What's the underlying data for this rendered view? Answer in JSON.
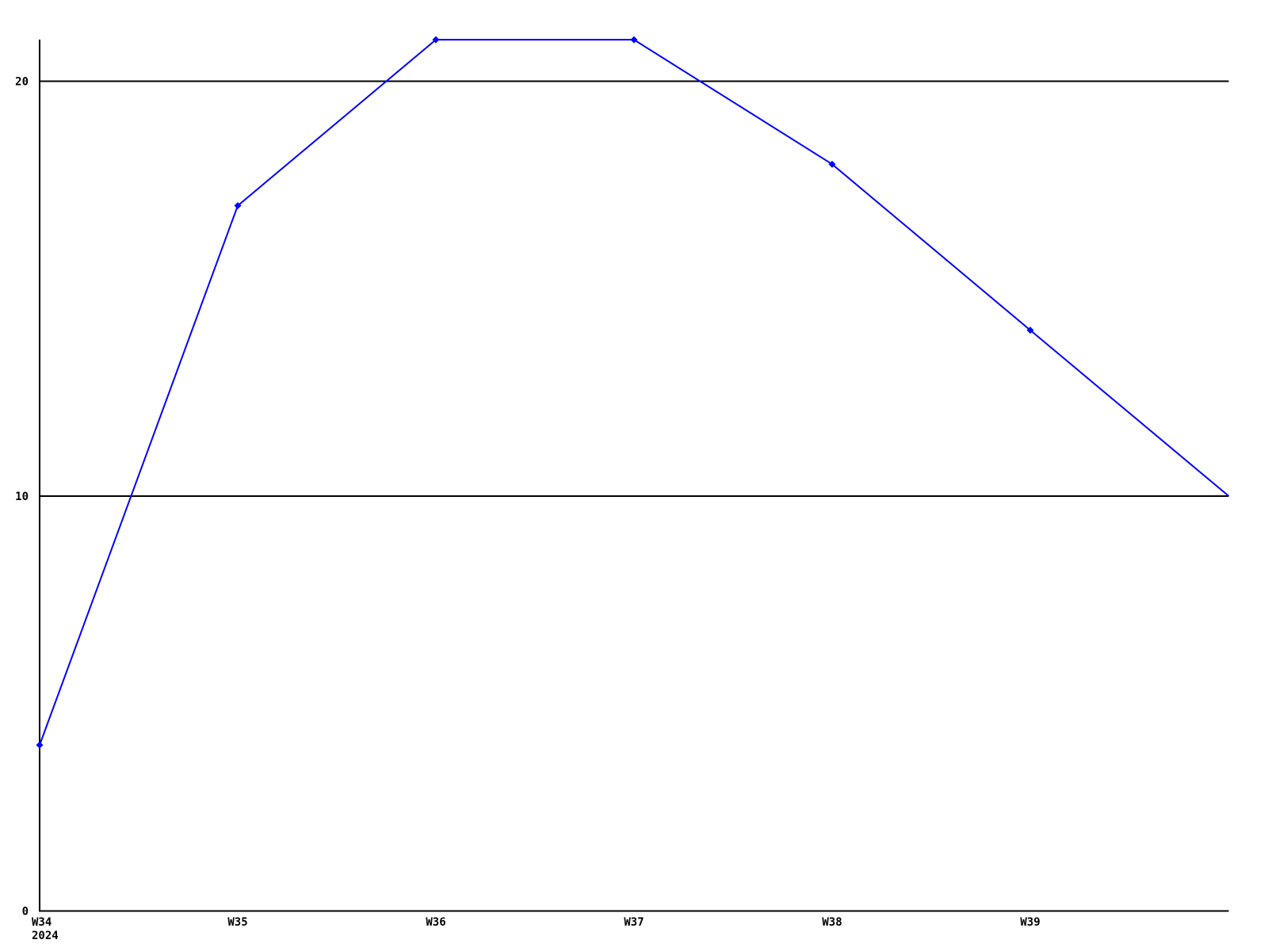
{
  "chart_data": {
    "type": "line",
    "title": "",
    "xlabel": "",
    "ylabel": "",
    "background_color": "#ffffff",
    "axis_color": "#000000",
    "categories": [
      "W34",
      "W35",
      "W36",
      "W37",
      "W38",
      "W39",
      ""
    ],
    "x_first_tick_year_label": "2024",
    "series": [
      {
        "name": "series-1",
        "color": "#0000ff",
        "marker": "diamond",
        "values": [
          4,
          17,
          21,
          21,
          18,
          14,
          10
        ],
        "marker_shown": [
          true,
          true,
          true,
          true,
          true,
          true,
          false
        ]
      }
    ],
    "y_ticks": [
      0,
      10,
      20
    ],
    "y_tick_labels": [
      "0",
      "10",
      "20"
    ],
    "ylim": [
      0,
      21
    ],
    "grid": "horizontal-only",
    "legend_position": "none"
  }
}
